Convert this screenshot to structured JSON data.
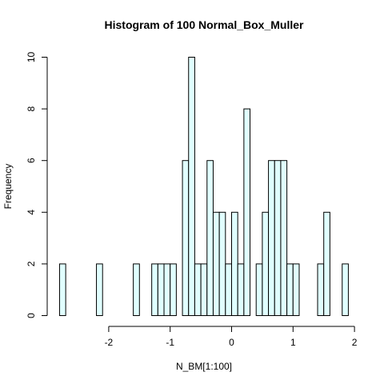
{
  "chart_data": {
    "type": "bar",
    "title": "Histogram of 100 Normal_Box_Muller",
    "xlabel": "N_BM[1:100]",
    "ylabel": "Frequency",
    "xlim": [
      -2.8,
      1.9
    ],
    "ylim": [
      0,
      10
    ],
    "x_ticks": [
      -2,
      -1,
      0,
      1,
      2
    ],
    "y_ticks": [
      0,
      2,
      4,
      6,
      8,
      10
    ],
    "bin_width": 0.1,
    "bin_start": -2.8,
    "counts": [
      2,
      0,
      0,
      0,
      0,
      0,
      2,
      0,
      0,
      0,
      0,
      0,
      2,
      0,
      0,
      2,
      2,
      2,
      2,
      0,
      6,
      10,
      2,
      2,
      6,
      4,
      4,
      2,
      4,
      2,
      8,
      0,
      2,
      4,
      6,
      6,
      6,
      2,
      2,
      0,
      0,
      0,
      2,
      4,
      0,
      0,
      2
    ],
    "bar_fill": "#e0ffff",
    "grid": false
  }
}
